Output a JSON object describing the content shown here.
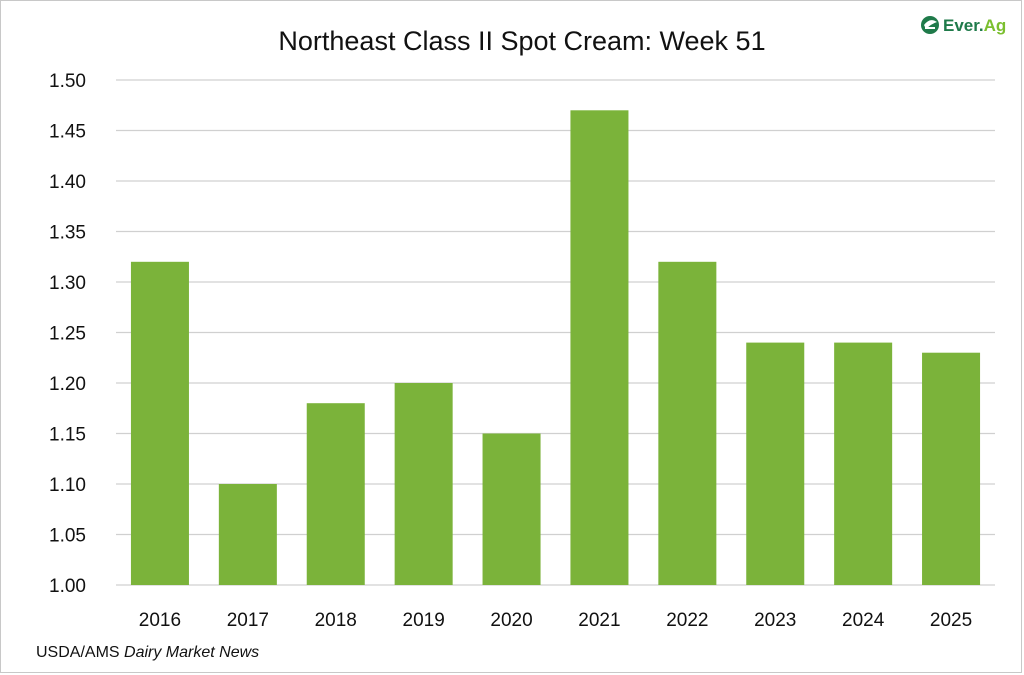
{
  "chart_data": {
    "type": "bar",
    "title": "Northeast Class II Spot Cream: Week 51",
    "categories": [
      "2016",
      "2017",
      "2018",
      "2019",
      "2020",
      "2021",
      "2022",
      "2023",
      "2024",
      "2025"
    ],
    "values": [
      1.32,
      1.1,
      1.18,
      1.2,
      1.15,
      1.47,
      1.32,
      1.24,
      1.24,
      1.23
    ],
    "ylim": [
      1.0,
      1.5
    ],
    "yticks": [
      "1.00",
      "1.05",
      "1.10",
      "1.15",
      "1.20",
      "1.25",
      "1.30",
      "1.35",
      "1.40",
      "1.45",
      "1.50"
    ],
    "xlabel": "",
    "ylabel": "",
    "grid": true,
    "legend": "none",
    "bar_color": "#7bb33a",
    "grid_color": "#d0d0d0"
  },
  "source": {
    "prefix": "USDA/AMS ",
    "italic": "Dairy Market News"
  },
  "logo": {
    "text_main": "Ever.",
    "text_accent": "Ag",
    "icon": "ever-ag-leaf-icon",
    "brand_green": "#1f7a4a",
    "accent_green": "#7bbf2f"
  }
}
